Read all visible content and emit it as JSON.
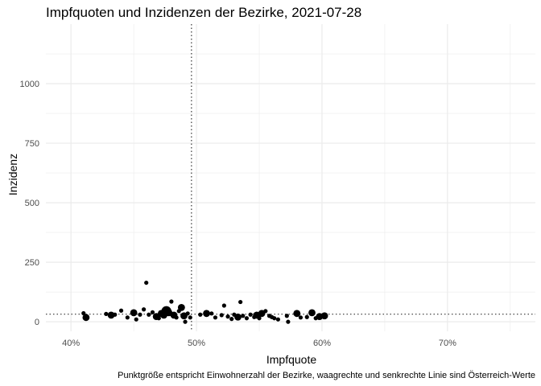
{
  "chart_data": {
    "type": "scatter",
    "title": "Impfquoten und Inzidenzen der Bezirke, 2021-07-28",
    "xlabel": "Impfquote",
    "ylabel": "Inzidenz",
    "caption": "Punktgröße entspricht Einwohnerzahl der Bezirke, waagrechte und senkrechte Linie sind Österreich-Werte",
    "xlim": [
      0.38,
      0.77
    ],
    "ylim": [
      -40,
      1250
    ],
    "x_ticks": [
      0.4,
      0.5,
      0.6,
      0.7
    ],
    "x_tick_labels": [
      "40%",
      "50%",
      "60%",
      "70%"
    ],
    "y_ticks": [
      0,
      250,
      500,
      750,
      1000
    ],
    "y_tick_labels": [
      "0",
      "250",
      "500",
      "750",
      "1000"
    ],
    "grid": true,
    "legend": "none",
    "reference_lines": {
      "vertical_x": 0.496,
      "horizontal_y": 32
    },
    "colors": {
      "points": "#000000",
      "grid": "#ebebeb",
      "reference": "#333333"
    },
    "series": [
      {
        "points": [
          {
            "x": 0.41,
            "y": 36,
            "size": 1
          },
          {
            "x": 0.412,
            "y": 18,
            "size": 2
          },
          {
            "x": 0.428,
            "y": 33,
            "size": 1
          },
          {
            "x": 0.432,
            "y": 28,
            "size": 2
          },
          {
            "x": 0.435,
            "y": 30,
            "size": 1
          },
          {
            "x": 0.44,
            "y": 47,
            "size": 1
          },
          {
            "x": 0.445,
            "y": 18,
            "size": 1
          },
          {
            "x": 0.45,
            "y": 38,
            "size": 2
          },
          {
            "x": 0.452,
            "y": 10,
            "size": 1
          },
          {
            "x": 0.455,
            "y": 30,
            "size": 1
          },
          {
            "x": 0.458,
            "y": 52,
            "size": 1
          },
          {
            "x": 0.46,
            "y": 164,
            "size": 1
          },
          {
            "x": 0.462,
            "y": 30,
            "size": 1
          },
          {
            "x": 0.465,
            "y": 40,
            "size": 1
          },
          {
            "x": 0.468,
            "y": 22,
            "size": 2
          },
          {
            "x": 0.47,
            "y": 15,
            "size": 1
          },
          {
            "x": 0.472,
            "y": 35,
            "size": 2
          },
          {
            "x": 0.474,
            "y": 28,
            "size": 2
          },
          {
            "x": 0.476,
            "y": 45,
            "size": 3
          },
          {
            "x": 0.478,
            "y": 38,
            "size": 2
          },
          {
            "x": 0.48,
            "y": 85,
            "size": 1
          },
          {
            "x": 0.482,
            "y": 28,
            "size": 2
          },
          {
            "x": 0.484,
            "y": 18,
            "size": 1
          },
          {
            "x": 0.486,
            "y": 45,
            "size": 1
          },
          {
            "x": 0.488,
            "y": 60,
            "size": 2
          },
          {
            "x": 0.49,
            "y": 25,
            "size": 2
          },
          {
            "x": 0.491,
            "y": 0,
            "size": 1
          },
          {
            "x": 0.493,
            "y": 35,
            "size": 1
          },
          {
            "x": 0.495,
            "y": 18,
            "size": 1
          },
          {
            "x": 0.503,
            "y": 30,
            "size": 1
          },
          {
            "x": 0.508,
            "y": 35,
            "size": 2
          },
          {
            "x": 0.512,
            "y": 35,
            "size": 1
          },
          {
            "x": 0.515,
            "y": 18,
            "size": 1
          },
          {
            "x": 0.52,
            "y": 28,
            "size": 1
          },
          {
            "x": 0.522,
            "y": 68,
            "size": 1
          },
          {
            "x": 0.525,
            "y": 22,
            "size": 1
          },
          {
            "x": 0.528,
            "y": 12,
            "size": 1
          },
          {
            "x": 0.53,
            "y": 30,
            "size": 1
          },
          {
            "x": 0.533,
            "y": 20,
            "size": 2
          },
          {
            "x": 0.535,
            "y": 83,
            "size": 1
          },
          {
            "x": 0.537,
            "y": 25,
            "size": 1
          },
          {
            "x": 0.54,
            "y": 15,
            "size": 1
          },
          {
            "x": 0.543,
            "y": 30,
            "size": 1
          },
          {
            "x": 0.546,
            "y": 20,
            "size": 1
          },
          {
            "x": 0.548,
            "y": 28,
            "size": 2
          },
          {
            "x": 0.55,
            "y": 15,
            "size": 1
          },
          {
            "x": 0.552,
            "y": 35,
            "size": 2
          },
          {
            "x": 0.555,
            "y": 45,
            "size": 1
          },
          {
            "x": 0.558,
            "y": 25,
            "size": 1
          },
          {
            "x": 0.56,
            "y": 20,
            "size": 1
          },
          {
            "x": 0.562,
            "y": 15,
            "size": 1
          },
          {
            "x": 0.565,
            "y": 10,
            "size": 1
          },
          {
            "x": 0.572,
            "y": 25,
            "size": 1
          },
          {
            "x": 0.573,
            "y": 0,
            "size": 1
          },
          {
            "x": 0.58,
            "y": 35,
            "size": 2
          },
          {
            "x": 0.583,
            "y": 18,
            "size": 1
          },
          {
            "x": 0.588,
            "y": 20,
            "size": 1
          },
          {
            "x": 0.592,
            "y": 38,
            "size": 2
          },
          {
            "x": 0.595,
            "y": 15,
            "size": 1
          },
          {
            "x": 0.598,
            "y": 22,
            "size": 2
          },
          {
            "x": 0.602,
            "y": 25,
            "size": 2
          }
        ]
      }
    ]
  }
}
